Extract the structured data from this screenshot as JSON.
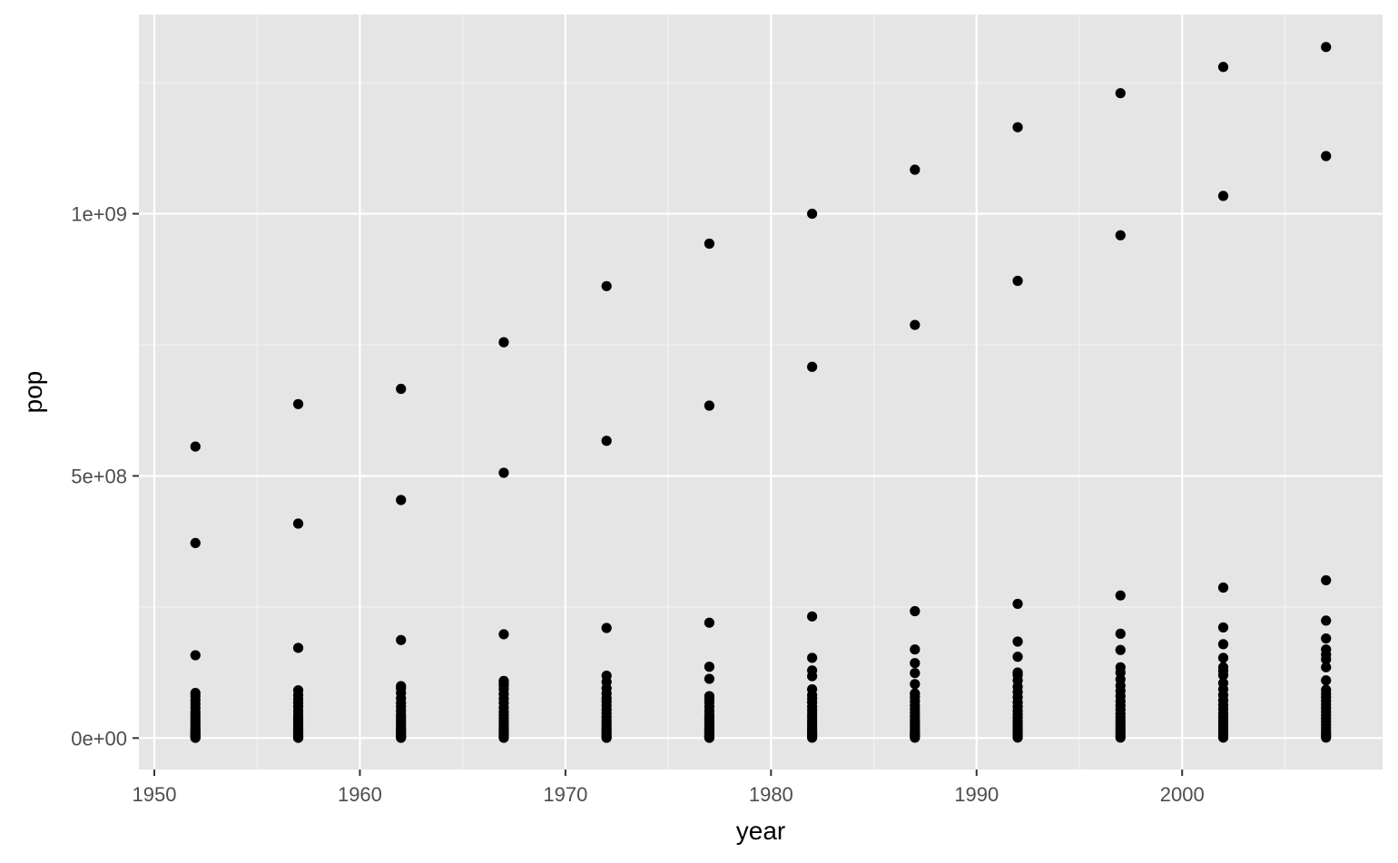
{
  "chart_data": {
    "type": "scatter",
    "title": "",
    "xlabel": "year",
    "ylabel": "pop",
    "xlim": [
      1949.25,
      2009.75
    ],
    "ylim": [
      -60000000,
      1380000000
    ],
    "x_ticks": [
      1950,
      1960,
      1970,
      1980,
      1990,
      2000
    ],
    "x_tick_labels": [
      "1950",
      "1960",
      "1970",
      "1980",
      "1990",
      "2000"
    ],
    "y_ticks": [
      0,
      500000000,
      1000000000
    ],
    "y_tick_labels": [
      "0e+00",
      "5e+08",
      "1e+09"
    ],
    "grid": true,
    "legend": "none",
    "colors": {
      "panel_background": "#e5e5e5",
      "grid_major": "#ffffff",
      "grid_minor": "#f2f2f2",
      "point": "#000000",
      "tick_text": "#4d4d4d",
      "axis_title": "#000000"
    },
    "years": [
      1952,
      1957,
      1962,
      1967,
      1972,
      1977,
      1982,
      1987,
      1992,
      1997,
      2002,
      2007
    ],
    "series": [
      {
        "points": [
          [
            1952,
            556000000
          ],
          [
            1952,
            372000000
          ],
          [
            1952,
            158000000
          ],
          [
            1952,
            86000000
          ],
          [
            1952,
            80000000
          ],
          [
            1952,
            72000000
          ],
          [
            1952,
            65000000
          ],
          [
            1952,
            58000000
          ],
          [
            1952,
            50000000
          ],
          [
            1952,
            45000000
          ],
          [
            1952,
            40000000
          ],
          [
            1952,
            35000000
          ],
          [
            1952,
            30000000
          ],
          [
            1952,
            25000000
          ],
          [
            1952,
            21000000
          ],
          [
            1952,
            17000000
          ],
          [
            1952,
            14000000
          ],
          [
            1952,
            11000000
          ],
          [
            1952,
            8000000
          ],
          [
            1952,
            6000000
          ],
          [
            1952,
            4000000
          ],
          [
            1952,
            2500000
          ],
          [
            1952,
            1200000
          ],
          [
            1952,
            400000
          ],
          [
            1957,
            637000000
          ],
          [
            1957,
            409000000
          ],
          [
            1957,
            172000000
          ],
          [
            1957,
            91000000
          ],
          [
            1957,
            82000000
          ],
          [
            1957,
            74000000
          ],
          [
            1957,
            67000000
          ],
          [
            1957,
            60000000
          ],
          [
            1957,
            52000000
          ],
          [
            1957,
            45000000
          ],
          [
            1957,
            40000000
          ],
          [
            1957,
            35000000
          ],
          [
            1957,
            30000000
          ],
          [
            1957,
            25000000
          ],
          [
            1957,
            21000000
          ],
          [
            1957,
            17000000
          ],
          [
            1957,
            14000000
          ],
          [
            1957,
            11000000
          ],
          [
            1957,
            8000000
          ],
          [
            1957,
            6000000
          ],
          [
            1957,
            4000000
          ],
          [
            1957,
            2500000
          ],
          [
            1957,
            1200000
          ],
          [
            1957,
            400000
          ],
          [
            1962,
            666000000
          ],
          [
            1962,
            454000000
          ],
          [
            1962,
            187000000
          ],
          [
            1962,
            99000000
          ],
          [
            1962,
            95000000
          ],
          [
            1962,
            86000000
          ],
          [
            1962,
            76000000
          ],
          [
            1962,
            67000000
          ],
          [
            1962,
            60000000
          ],
          [
            1962,
            52000000
          ],
          [
            1962,
            45000000
          ],
          [
            1962,
            40000000
          ],
          [
            1962,
            35000000
          ],
          [
            1962,
            30000000
          ],
          [
            1962,
            25000000
          ],
          [
            1962,
            21000000
          ],
          [
            1962,
            17000000
          ],
          [
            1962,
            14000000
          ],
          [
            1962,
            11000000
          ],
          [
            1962,
            8000000
          ],
          [
            1962,
            5000000
          ],
          [
            1962,
            3000000
          ],
          [
            1962,
            1500000
          ],
          [
            1962,
            500000
          ],
          [
            1967,
            755000000
          ],
          [
            1967,
            506000000
          ],
          [
            1967,
            198000000
          ],
          [
            1967,
            109000000
          ],
          [
            1967,
            104000000
          ],
          [
            1967,
            100000000
          ],
          [
            1967,
            93000000
          ],
          [
            1967,
            84000000
          ],
          [
            1967,
            75000000
          ],
          [
            1967,
            67000000
          ],
          [
            1967,
            58000000
          ],
          [
            1967,
            50000000
          ],
          [
            1967,
            43000000
          ],
          [
            1967,
            37000000
          ],
          [
            1967,
            31000000
          ],
          [
            1967,
            26000000
          ],
          [
            1967,
            21000000
          ],
          [
            1967,
            17000000
          ],
          [
            1967,
            13000000
          ],
          [
            1967,
            10000000
          ],
          [
            1967,
            7000000
          ],
          [
            1967,
            4000000
          ],
          [
            1967,
            2000000
          ],
          [
            1967,
            600000
          ],
          [
            1972,
            862000000
          ],
          [
            1972,
            567000000
          ],
          [
            1972,
            210000000
          ],
          [
            1972,
            119000000
          ],
          [
            1972,
            107000000
          ],
          [
            1972,
            95000000
          ],
          [
            1972,
            85000000
          ],
          [
            1972,
            76000000
          ],
          [
            1972,
            70000000
          ],
          [
            1972,
            62000000
          ],
          [
            1972,
            54000000
          ],
          [
            1972,
            47000000
          ],
          [
            1972,
            40000000
          ],
          [
            1972,
            34000000
          ],
          [
            1972,
            29000000
          ],
          [
            1972,
            24000000
          ],
          [
            1972,
            19000000
          ],
          [
            1972,
            15000000
          ],
          [
            1972,
            12000000
          ],
          [
            1972,
            9000000
          ],
          [
            1972,
            6000000
          ],
          [
            1972,
            3500000
          ],
          [
            1972,
            1800000
          ],
          [
            1972,
            600000
          ],
          [
            1977,
            943000000
          ],
          [
            1977,
            634000000
          ],
          [
            1977,
            220000000
          ],
          [
            1977,
            136000000
          ],
          [
            1977,
            113000000
          ],
          [
            1977,
            80000000
          ],
          [
            1977,
            75000000
          ],
          [
            1977,
            68000000
          ],
          [
            1977,
            60000000
          ],
          [
            1977,
            52000000
          ],
          [
            1977,
            45000000
          ],
          [
            1977,
            40000000
          ],
          [
            1977,
            35000000
          ],
          [
            1977,
            30000000
          ],
          [
            1977,
            25000000
          ],
          [
            1977,
            21000000
          ],
          [
            1977,
            17000000
          ],
          [
            1977,
            14000000
          ],
          [
            1977,
            11000000
          ],
          [
            1977,
            8000000
          ],
          [
            1977,
            5000000
          ],
          [
            1977,
            3000000
          ],
          [
            1977,
            1500000
          ],
          [
            1977,
            500000
          ],
          [
            1982,
            1000000000
          ],
          [
            1982,
            708000000
          ],
          [
            1982,
            232000000
          ],
          [
            1982,
            153000000
          ],
          [
            1982,
            129000000
          ],
          [
            1982,
            118000000
          ],
          [
            1982,
            93000000
          ],
          [
            1982,
            82000000
          ],
          [
            1982,
            75000000
          ],
          [
            1982,
            68000000
          ],
          [
            1982,
            60000000
          ],
          [
            1982,
            53000000
          ],
          [
            1982,
            46000000
          ],
          [
            1982,
            40000000
          ],
          [
            1982,
            34000000
          ],
          [
            1982,
            29000000
          ],
          [
            1982,
            24000000
          ],
          [
            1982,
            19000000
          ],
          [
            1982,
            15000000
          ],
          [
            1982,
            11000000
          ],
          [
            1982,
            8000000
          ],
          [
            1982,
            5000000
          ],
          [
            1982,
            2500000
          ],
          [
            1982,
            800000
          ],
          [
            1987,
            1084000000
          ],
          [
            1987,
            788000000
          ],
          [
            1987,
            242000000
          ],
          [
            1987,
            169000000
          ],
          [
            1987,
            143000000
          ],
          [
            1987,
            124000000
          ],
          [
            1987,
            103000000
          ],
          [
            1987,
            85000000
          ],
          [
            1987,
            78000000
          ],
          [
            1987,
            70000000
          ],
          [
            1987,
            62000000
          ],
          [
            1987,
            55000000
          ],
          [
            1987,
            48000000
          ],
          [
            1987,
            41000000
          ],
          [
            1987,
            35000000
          ],
          [
            1987,
            30000000
          ],
          [
            1987,
            25000000
          ],
          [
            1987,
            20000000
          ],
          [
            1987,
            15000000
          ],
          [
            1987,
            11000000
          ],
          [
            1987,
            8000000
          ],
          [
            1987,
            5000000
          ],
          [
            1987,
            2500000
          ],
          [
            1987,
            800000
          ],
          [
            1992,
            1165000000
          ],
          [
            1992,
            872000000
          ],
          [
            1992,
            256000000
          ],
          [
            1992,
            184000000
          ],
          [
            1992,
            155000000
          ],
          [
            1992,
            125000000
          ],
          [
            1992,
            120000000
          ],
          [
            1992,
            110000000
          ],
          [
            1992,
            98000000
          ],
          [
            1992,
            88000000
          ],
          [
            1992,
            78000000
          ],
          [
            1992,
            68000000
          ],
          [
            1992,
            60000000
          ],
          [
            1992,
            52000000
          ],
          [
            1992,
            45000000
          ],
          [
            1992,
            39000000
          ],
          [
            1992,
            33000000
          ],
          [
            1992,
            27000000
          ],
          [
            1992,
            22000000
          ],
          [
            1992,
            17000000
          ],
          [
            1992,
            12000000
          ],
          [
            1992,
            8000000
          ],
          [
            1992,
            4000000
          ],
          [
            1992,
            1000000
          ],
          [
            1997,
            1230000000
          ],
          [
            1997,
            959000000
          ],
          [
            1997,
            272000000
          ],
          [
            1997,
            199000000
          ],
          [
            1997,
            168000000
          ],
          [
            1997,
            135000000
          ],
          [
            1997,
            125000000
          ],
          [
            1997,
            112000000
          ],
          [
            1997,
            100000000
          ],
          [
            1997,
            90000000
          ],
          [
            1997,
            80000000
          ],
          [
            1997,
            70000000
          ],
          [
            1997,
            62000000
          ],
          [
            1997,
            54000000
          ],
          [
            1997,
            46000000
          ],
          [
            1997,
            40000000
          ],
          [
            1997,
            34000000
          ],
          [
            1997,
            28000000
          ],
          [
            1997,
            23000000
          ],
          [
            1997,
            18000000
          ],
          [
            1997,
            13000000
          ],
          [
            1997,
            8000000
          ],
          [
            1997,
            4000000
          ],
          [
            1997,
            1000000
          ],
          [
            2002,
            1280000000
          ],
          [
            2002,
            1034000000
          ],
          [
            2002,
            287000000
          ],
          [
            2002,
            211000000
          ],
          [
            2002,
            179000000
          ],
          [
            2002,
            153000000
          ],
          [
            2002,
            135000000
          ],
          [
            2002,
            128000000
          ],
          [
            2002,
            120000000
          ],
          [
            2002,
            105000000
          ],
          [
            2002,
            93000000
          ],
          [
            2002,
            82000000
          ],
          [
            2002,
            72000000
          ],
          [
            2002,
            63000000
          ],
          [
            2002,
            55000000
          ],
          [
            2002,
            47000000
          ],
          [
            2002,
            40000000
          ],
          [
            2002,
            33000000
          ],
          [
            2002,
            27000000
          ],
          [
            2002,
            21000000
          ],
          [
            2002,
            15000000
          ],
          [
            2002,
            9000000
          ],
          [
            2002,
            4000000
          ],
          [
            2002,
            1000000
          ],
          [
            2007,
            1318000000
          ],
          [
            2007,
            1110000000
          ],
          [
            2007,
            301000000
          ],
          [
            2007,
            224000000
          ],
          [
            2007,
            190000000
          ],
          [
            2007,
            169000000
          ],
          [
            2007,
            159000000
          ],
          [
            2007,
            150000000
          ],
          [
            2007,
            135000000
          ],
          [
            2007,
            110000000
          ],
          [
            2007,
            92000000
          ],
          [
            2007,
            85000000
          ],
          [
            2007,
            78000000
          ],
          [
            2007,
            71000000
          ],
          [
            2007,
            64000000
          ],
          [
            2007,
            57000000
          ],
          [
            2007,
            50000000
          ],
          [
            2007,
            43000000
          ],
          [
            2007,
            37000000
          ],
          [
            2007,
            31000000
          ],
          [
            2007,
            25000000
          ],
          [
            2007,
            19000000
          ],
          [
            2007,
            13000000
          ],
          [
            2007,
            8000000
          ],
          [
            2007,
            4000000
          ],
          [
            2007,
            1000000
          ]
        ]
      }
    ]
  }
}
